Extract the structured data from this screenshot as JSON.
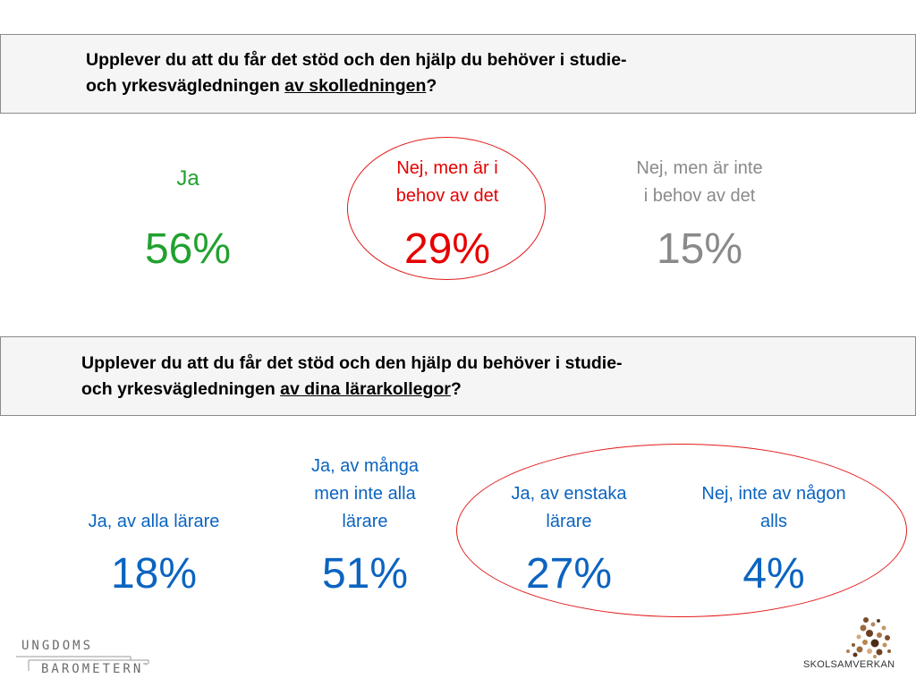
{
  "question1": {
    "line1": "Upplever du att du får det stöd och den hjälp du behöver i studie-",
    "line2_prefix": "och yrkesvägledningen ",
    "line2_underlined": "av skolledningen",
    "line2_suffix": "?"
  },
  "results1": [
    {
      "label": "Ja",
      "value": "56%",
      "color": "#22a130"
    },
    {
      "label_line1": "Nej, men är i",
      "label_line2": "behov av det",
      "value": "29%",
      "color": "#e60000"
    },
    {
      "label_line1": "Nej, men är inte",
      "label_line2": "i behov av det",
      "value": "15%",
      "color": "#8a8a8a"
    }
  ],
  "question2": {
    "line1": "Upplever du att du får det stöd och den hjälp du behöver i studie-",
    "line2_prefix": "och yrkesvägledningen ",
    "line2_underlined": "av dina lärarkollegor",
    "line2_suffix": "?"
  },
  "results2": [
    {
      "label": "Ja, av alla lärare",
      "value": "18%",
      "color": "#0b64c0"
    },
    {
      "label_line1": "Ja, av många",
      "label_line2": "men inte alla",
      "label_line3": "lärare",
      "value": "51%",
      "color": "#0b64c0"
    },
    {
      "label_line1": "Ja, av enstaka",
      "label_line2": "lärare",
      "value": "27%",
      "color": "#0b64c0"
    },
    {
      "label_line1": "Nej, inte av någon",
      "label_line2": "alls",
      "value": "4%",
      "color": "#0b64c0"
    }
  ],
  "highlight_color": "#e21b1b",
  "logos": {
    "ungdomsbarometern_line1": "UNGDOMS",
    "ungdomsbarometern_line2": "BAROMETERN",
    "ungdomsbarometern_tm": "™",
    "skolsamverkan": "SKOLSAMVERKAN"
  }
}
